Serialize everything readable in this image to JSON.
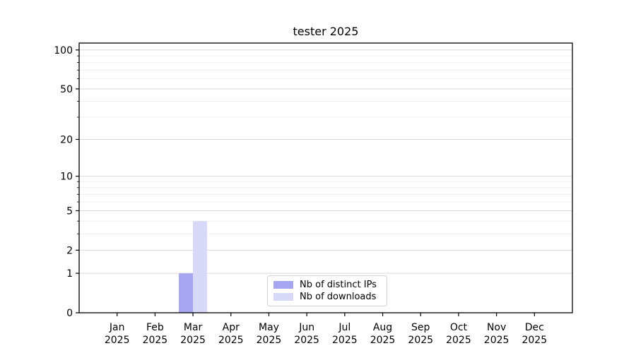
{
  "chart_data": {
    "type": "bar",
    "title": "tester 2025",
    "categories": [
      "Jan 2025",
      "Feb 2025",
      "Mar 2025",
      "Apr 2025",
      "May 2025",
      "Jun 2025",
      "Jul 2025",
      "Aug 2025",
      "Sep 2025",
      "Oct 2025",
      "Nov 2025",
      "Dec 2025"
    ],
    "series": [
      {
        "name": "Nb of distinct IPs",
        "color": "#a5a5f0",
        "values": [
          0,
          0,
          1,
          0,
          0,
          0,
          0,
          0,
          0,
          0,
          0,
          0
        ]
      },
      {
        "name": "Nb of downloads",
        "color": "#d8d8f8",
        "values": [
          0,
          0,
          4,
          0,
          0,
          0,
          0,
          0,
          0,
          0,
          0,
          0
        ]
      }
    ],
    "xlabel": "",
    "ylabel": "",
    "yscale": "log1p",
    "yticks": [
      0,
      1,
      2,
      5,
      10,
      20,
      50,
      100
    ],
    "minor_yticks": [
      3,
      4,
      6,
      7,
      8,
      9,
      30,
      40,
      60,
      70,
      80,
      90
    ],
    "ylim": [
      0,
      113
    ],
    "grid": "horizontal-major-and-minor",
    "legend_position": "lower-center-inside"
  },
  "colors": {
    "major_grid": "#d9d9d9",
    "minor_grid": "#efefef",
    "spine": "#000000",
    "tick": "#000000",
    "legend_border": "#d0d0d0",
    "background": "#ffffff"
  }
}
